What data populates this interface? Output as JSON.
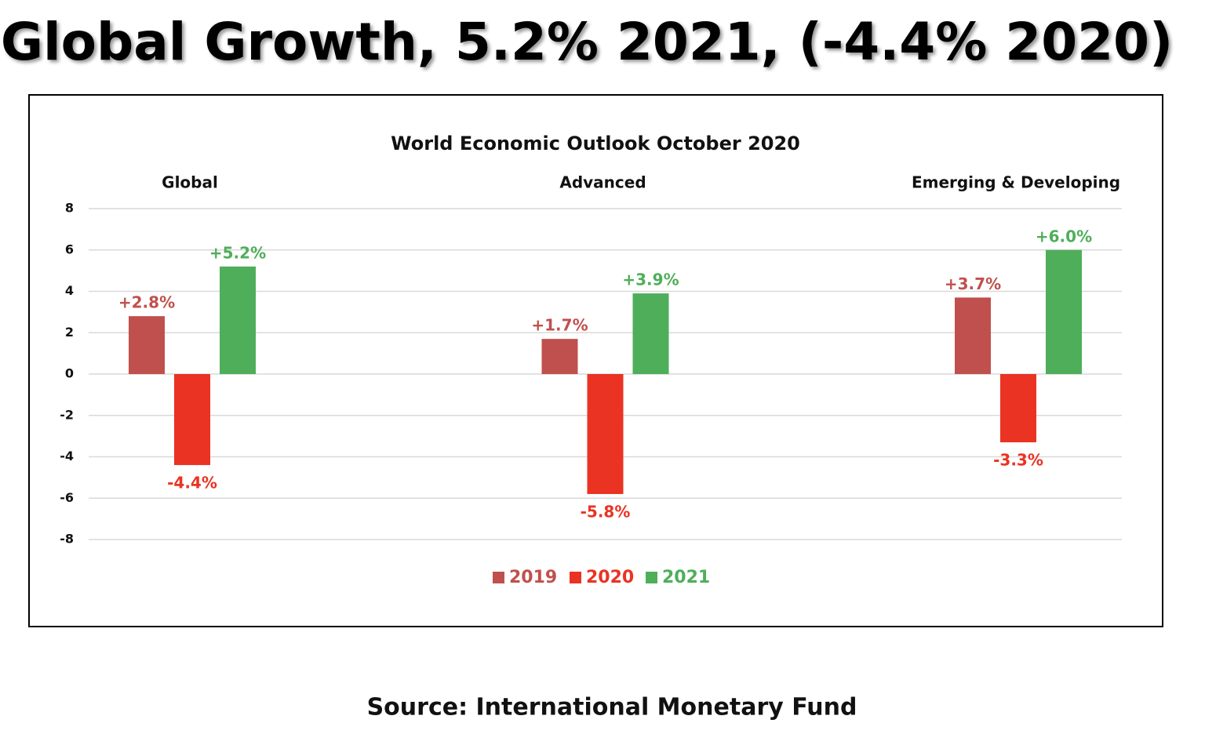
{
  "heading": "Global Growth, 5.2%  2021, (-4.4% 2020)",
  "source": "Source: International Monetary Fund",
  "chart_data": {
    "type": "bar",
    "title": "World Economic Outlook October 2020",
    "categories": [
      "Global",
      "Advanced",
      "Emerging & Developing"
    ],
    "series": [
      {
        "name": "2019",
        "color": "#c0504d",
        "values": [
          2.8,
          1.7,
          3.7
        ],
        "value_labels": [
          "+2.8%",
          "+1.7%",
          "+3.7%"
        ]
      },
      {
        "name": "2020",
        "color": "#ea3323",
        "values": [
          -4.4,
          -5.8,
          -3.3
        ],
        "value_labels": [
          "-4.4%",
          "-5.8%",
          "-3.3%"
        ]
      },
      {
        "name": "2021",
        "color": "#4fae5a",
        "values": [
          5.2,
          3.9,
          6.0
        ],
        "value_labels": [
          "+5.2%",
          "+3.9%",
          "+6.0%"
        ]
      }
    ],
    "ylim": [
      -8,
      8
    ],
    "yticks": [
      8,
      6,
      4,
      2,
      0,
      -2,
      -4,
      -6,
      -8
    ],
    "grid": true,
    "legend": "bottom"
  }
}
